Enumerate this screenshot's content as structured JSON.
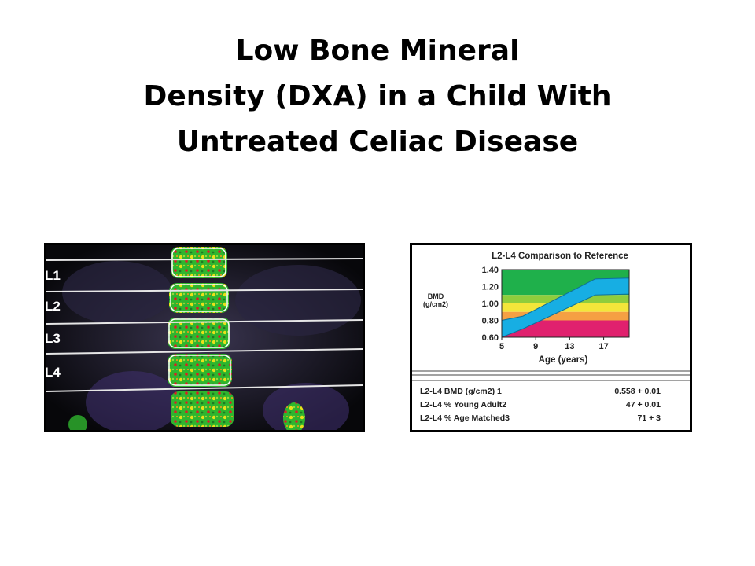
{
  "title": {
    "lines": [
      "Low Bone Mineral",
      "Density (DXA) in a Child With",
      "Untreated Celiac Disease"
    ]
  },
  "scan": {
    "vertebra_labels": [
      "L1",
      "L2",
      "L3",
      "L4"
    ]
  },
  "chart_data": {
    "type": "area",
    "title": "L2-L4 Comparison to Reference",
    "ylabel_line1": "BMD",
    "ylabel_line2": "(g/cm2)",
    "xlabel": "Age (years)",
    "y_ticks": [
      "1.40",
      "1.20",
      "1.00",
      "0.80",
      "0.60"
    ],
    "x_ticks": [
      "5",
      "9",
      "13",
      "17"
    ],
    "ylim": [
      0.6,
      1.4
    ],
    "xlim": [
      5,
      20
    ],
    "bands": [
      {
        "from": 1.1,
        "to": 1.4,
        "color": "#1fb04b"
      },
      {
        "from": 1.0,
        "to": 1.1,
        "color": "#8fcd3c"
      },
      {
        "from": 0.9,
        "to": 1.0,
        "color": "#f3e63a"
      },
      {
        "from": 0.8,
        "to": 0.9,
        "color": "#f5a043"
      },
      {
        "from": 0.6,
        "to": 0.8,
        "color": "#e0216e"
      }
    ],
    "reference_band": {
      "color": "#17aee3",
      "x": [
        5,
        7.5,
        16,
        20
      ],
      "upper": [
        0.8,
        0.85,
        1.29,
        1.3
      ],
      "lower": [
        0.6,
        0.7,
        1.1,
        1.11
      ]
    }
  },
  "results": [
    {
      "label": "L2-L4 BMD (g/cm2) 1",
      "value": "0.558 + 0.01"
    },
    {
      "label": "L2-L4 % Young Adult2",
      "value": "47 + 0.01"
    },
    {
      "label": "L2-L4 % Age Matched3",
      "value": "71 + 3"
    }
  ]
}
